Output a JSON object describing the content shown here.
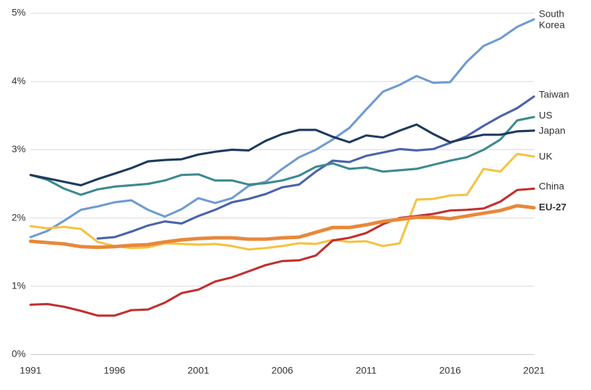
{
  "chart_data": {
    "type": "line",
    "title": "",
    "xlabel": "",
    "ylabel": "",
    "xlim": [
      1991,
      2021
    ],
    "ylim": [
      0,
      5
    ],
    "x_ticks": [
      "1991",
      "1996",
      "2001",
      "2006",
      "2011",
      "2016",
      "2021"
    ],
    "y_ticks": [
      "0%",
      "1%",
      "2%",
      "3%",
      "4%",
      "5%"
    ],
    "grid": "horizontal",
    "legend": "inline-right",
    "series": [
      {
        "key": "south-korea",
        "label_lines": [
          "South",
          "Korea"
        ],
        "color": "#6f9bd1",
        "bold": false,
        "x": [
          1991,
          1992,
          1993,
          1994,
          1995,
          1996,
          1997,
          1998,
          1999,
          2000,
          2001,
          2002,
          2003,
          2004,
          2005,
          2006,
          2007,
          2008,
          2009,
          2010,
          2011,
          2012,
          2013,
          2014,
          2015,
          2016,
          2017,
          2018,
          2019,
          2020,
          2021
        ],
        "values": [
          1.72,
          1.81,
          1.96,
          2.12,
          2.17,
          2.23,
          2.26,
          2.12,
          2.02,
          2.13,
          2.29,
          2.22,
          2.29,
          2.47,
          2.53,
          2.72,
          2.89,
          3.0,
          3.15,
          3.32,
          3.59,
          3.85,
          3.95,
          4.08,
          3.98,
          3.99,
          4.29,
          4.52,
          4.63,
          4.8,
          4.91
        ]
      },
      {
        "key": "taiwan",
        "label_lines": [
          "Taiwan"
        ],
        "color": "#4a63ad",
        "bold": false,
        "x": [
          1995,
          1996,
          1997,
          1998,
          1999,
          2000,
          2001,
          2002,
          2003,
          2004,
          2005,
          2006,
          2007,
          2008,
          2009,
          2010,
          2011,
          2012,
          2013,
          2014,
          2015,
          2016,
          2017,
          2018,
          2019,
          2020,
          2021
        ],
        "values": [
          1.7,
          1.72,
          1.8,
          1.89,
          1.95,
          1.92,
          2.03,
          2.12,
          2.23,
          2.28,
          2.35,
          2.45,
          2.49,
          2.68,
          2.84,
          2.82,
          2.91,
          2.96,
          3.01,
          2.99,
          3.01,
          3.1,
          3.2,
          3.35,
          3.49,
          3.61,
          3.78
        ]
      },
      {
        "key": "us",
        "label_lines": [
          "US"
        ],
        "color": "#3d8a8f",
        "bold": false,
        "x": [
          1991,
          1992,
          1993,
          1994,
          1995,
          1996,
          1997,
          1998,
          1999,
          2000,
          2001,
          2002,
          2003,
          2004,
          2005,
          2006,
          2007,
          2008,
          2009,
          2010,
          2011,
          2012,
          2013,
          2014,
          2015,
          2016,
          2017,
          2018,
          2019,
          2020,
          2021
        ],
        "values": [
          2.63,
          2.56,
          2.43,
          2.34,
          2.42,
          2.46,
          2.48,
          2.5,
          2.55,
          2.63,
          2.64,
          2.55,
          2.55,
          2.49,
          2.51,
          2.55,
          2.62,
          2.75,
          2.8,
          2.72,
          2.74,
          2.68,
          2.7,
          2.72,
          2.78,
          2.84,
          2.89,
          3.0,
          3.15,
          3.43,
          3.48
        ]
      },
      {
        "key": "japan",
        "label_lines": [
          "Japan"
        ],
        "color": "#1f3a5f",
        "bold": false,
        "x": [
          1991,
          1992,
          1993,
          1994,
          1995,
          1996,
          1997,
          1998,
          1999,
          2000,
          2001,
          2002,
          2003,
          2004,
          2005,
          2006,
          2007,
          2008,
          2009,
          2010,
          2011,
          2012,
          2013,
          2014,
          2015,
          2016,
          2017,
          2018,
          2019,
          2020,
          2021
        ],
        "values": [
          2.63,
          2.58,
          2.53,
          2.48,
          2.57,
          2.65,
          2.73,
          2.83,
          2.85,
          2.86,
          2.93,
          2.97,
          3.0,
          2.99,
          3.13,
          3.23,
          3.29,
          3.29,
          3.19,
          3.11,
          3.21,
          3.18,
          3.28,
          3.37,
          3.23,
          3.11,
          3.17,
          3.22,
          3.22,
          3.27,
          3.28
        ]
      },
      {
        "key": "uk",
        "label_lines": [
          "UK"
        ],
        "color": "#f5c242",
        "bold": false,
        "x": [
          1991,
          1992,
          1993,
          1994,
          1995,
          1996,
          1997,
          1998,
          1999,
          2000,
          2001,
          2002,
          2003,
          2004,
          2005,
          2006,
          2007,
          2008,
          2009,
          2010,
          2011,
          2012,
          2013,
          2014,
          2015,
          2016,
          2017,
          2018,
          2019,
          2020,
          2021
        ],
        "values": [
          1.88,
          1.85,
          1.87,
          1.84,
          1.65,
          1.59,
          1.56,
          1.57,
          1.63,
          1.62,
          1.61,
          1.62,
          1.59,
          1.54,
          1.56,
          1.59,
          1.63,
          1.62,
          1.68,
          1.65,
          1.66,
          1.59,
          1.63,
          2.27,
          2.28,
          2.33,
          2.34,
          2.72,
          2.68,
          2.94,
          2.9
        ]
      },
      {
        "key": "china",
        "label_lines": [
          "China"
        ],
        "color": "#c0302f",
        "bold": false,
        "x": [
          1991,
          1992,
          1993,
          1994,
          1995,
          1996,
          1997,
          1998,
          1999,
          2000,
          2001,
          2002,
          2003,
          2004,
          2005,
          2006,
          2007,
          2008,
          2009,
          2010,
          2011,
          2012,
          2013,
          2014,
          2015,
          2016,
          2017,
          2018,
          2019,
          2020,
          2021
        ],
        "values": [
          0.73,
          0.74,
          0.7,
          0.64,
          0.57,
          0.57,
          0.65,
          0.66,
          0.76,
          0.9,
          0.95,
          1.07,
          1.13,
          1.22,
          1.31,
          1.37,
          1.38,
          1.45,
          1.67,
          1.71,
          1.78,
          1.91,
          2.0,
          2.03,
          2.06,
          2.11,
          2.12,
          2.14,
          2.24,
          2.41,
          2.43
        ]
      },
      {
        "key": "eu-27",
        "label_lines": [
          "EU-27"
        ],
        "color": "#e8883a",
        "bold": true,
        "x": [
          1991,
          1992,
          1993,
          1994,
          1995,
          1996,
          1997,
          1998,
          1999,
          2000,
          2001,
          2002,
          2003,
          2004,
          2005,
          2006,
          2007,
          2008,
          2009,
          2010,
          2011,
          2012,
          2013,
          2014,
          2015,
          2016,
          2017,
          2018,
          2019,
          2020,
          2021
        ],
        "values": [
          1.66,
          1.64,
          1.62,
          1.58,
          1.57,
          1.58,
          1.6,
          1.61,
          1.65,
          1.68,
          1.7,
          1.71,
          1.71,
          1.69,
          1.69,
          1.71,
          1.72,
          1.79,
          1.86,
          1.86,
          1.9,
          1.95,
          1.98,
          2.01,
          2.01,
          1.99,
          2.03,
          2.07,
          2.11,
          2.18,
          2.15
        ]
      }
    ]
  }
}
